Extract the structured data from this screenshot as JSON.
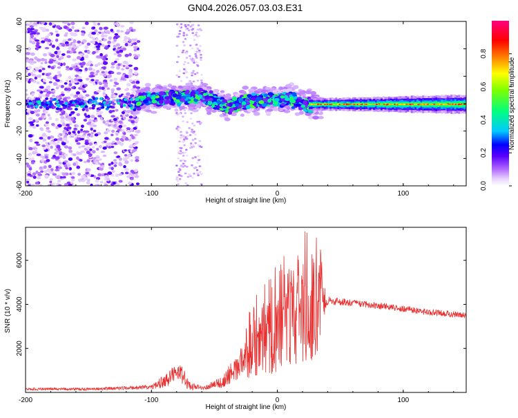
{
  "chart_data": [
    {
      "type": "heatmap",
      "title": "GN04.2026.057.03.03.E31",
      "xlabel": "Height of straight line (km)",
      "ylabel": "Frequency (Hz)",
      "xlim": [
        -200,
        150
      ],
      "ylim": [
        -60,
        60
      ],
      "x_ticks": [
        "-200",
        "-100",
        "0",
        "100"
      ],
      "y_ticks": [
        "60",
        "40",
        "20",
        "0",
        "-20",
        "-40",
        "-60"
      ],
      "colorbar": {
        "label": "Normalized spectral amplitude",
        "range": [
          0.0,
          1.0
        ],
        "ticks": [
          "0.0",
          "0.2",
          "0.4",
          "0.6",
          "0.8"
        ],
        "colormap": [
          "#ffffff",
          "#b36bff",
          "#6a00ff",
          "#0000ff",
          "#00c8ff",
          "#00ff7f",
          "#7fff00",
          "#ffff00",
          "#ff8000",
          "#ff0000",
          "#ff0080"
        ]
      },
      "features": [
        {
          "name": "broadband scatter",
          "x_range": [
            -200,
            -110
          ],
          "freq_range": [
            -60,
            60
          ],
          "amplitude": 0.1
        },
        {
          "name": "sparse scatter column",
          "x_range": [
            -80,
            -60
          ],
          "freq_range": [
            -60,
            60
          ],
          "amplitude": 0.05
        },
        {
          "name": "noisy central band",
          "x_range": [
            -110,
            30
          ],
          "center_freq": [
            0,
            5,
            0,
            -2
          ],
          "amplitude": 0.35
        },
        {
          "name": "narrow carrier",
          "x_range": [
            30,
            150
          ],
          "center_freq": 0,
          "amplitude": 0.6
        }
      ]
    },
    {
      "type": "line",
      "title": "",
      "xlabel": "Height of straight line (km)",
      "ylabel": "SNR (10 * v/v)",
      "xlim": [
        -200,
        150
      ],
      "ylim": [
        0,
        7500
      ],
      "x_ticks": [
        "-200",
        "-100",
        "0",
        "100"
      ],
      "y_ticks": [
        "2000",
        "4000",
        "6000"
      ],
      "series": [
        {
          "name": "SNR",
          "color": "#e83030",
          "x": [
            -200,
            -150,
            -120,
            -100,
            -90,
            -80,
            -75,
            -70,
            -60,
            -45,
            -30,
            -20,
            -10,
            0,
            10,
            20,
            30,
            40,
            60,
            80,
            100,
            120,
            150
          ],
          "y": [
            150,
            150,
            200,
            250,
            500,
            900,
            800,
            300,
            200,
            450,
            1200,
            2000,
            2500,
            2600,
            3000,
            3400,
            3800,
            4200,
            4050,
            3950,
            3800,
            3650,
            3500
          ],
          "noise": [
            60,
            60,
            80,
            100,
            300,
            400,
            500,
            200,
            80,
            250,
            700,
            1300,
            1600,
            1800,
            2000,
            2200,
            2400,
            200,
            150,
            150,
            150,
            150,
            150
          ]
        }
      ]
    }
  ]
}
